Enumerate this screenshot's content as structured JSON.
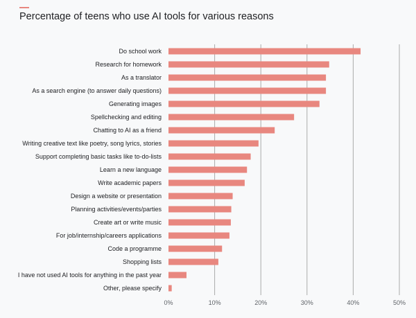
{
  "chart_data": {
    "type": "bar",
    "orientation": "horizontal",
    "title": "Percentage of teens who use AI tools for various reasons",
    "xlabel": "",
    "ylabel": "",
    "xlim": [
      0,
      50
    ],
    "grid": true,
    "bar_color": "#e8877f",
    "x_ticks": [
      "0%",
      "10%",
      "20%",
      "30%",
      "40%",
      "50%"
    ],
    "x_tick_values": [
      0,
      10,
      20,
      30,
      40,
      50
    ],
    "categories": [
      "Do school work",
      "Research for homework",
      "As a translator",
      "As a search engine (to answer daily questions)",
      "Generating images",
      "Spellchecking and editing",
      "Chatting to AI as a friend",
      "Writing creative text like poetry, song lyrics, stories",
      "Support completing basic tasks like to-do-lists",
      "Learn a new language",
      "Write academic papers",
      "Design a website or presentation",
      "Planning activities/events/parties",
      "Create art or write music",
      "For job/internship/careers applications",
      "Code a programme",
      "Shopping lists",
      "I have not used AI tools for anything in the past year",
      "Other, please specify"
    ],
    "values": [
      41.6,
      34.8,
      34.1,
      34.1,
      32.7,
      27.2,
      23.0,
      19.5,
      17.8,
      17.0,
      16.5,
      13.9,
      13.6,
      13.5,
      13.2,
      11.6,
      10.8,
      3.9,
      0.7
    ]
  }
}
